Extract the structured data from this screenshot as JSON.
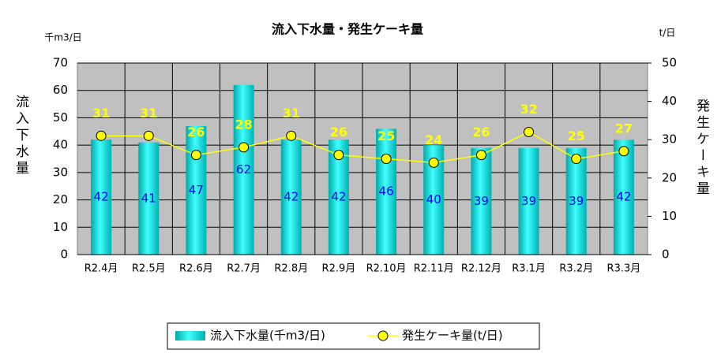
{
  "chart_data": {
    "type": "combo",
    "title": "流入下水量・発生ケーキ量",
    "y_unit": "千m3/日",
    "y2_unit": "t/日",
    "ylabel": "流入下水量",
    "y2label": "発生ケーキ量",
    "categories": [
      "R2.4月",
      "R2.5月",
      "R2.6月",
      "R2.7月",
      "R2.8月",
      "R2.9月",
      "R2.10月",
      "R2.11月",
      "R2.12月",
      "R3.1月",
      "R3.2月",
      "R3.3月"
    ],
    "series": [
      {
        "name": "流入下水量(千m3/日)",
        "type": "bar",
        "color": "#00d0d0",
        "values": [
          42,
          41,
          47,
          62,
          42,
          42,
          46,
          40,
          39,
          39,
          39,
          42
        ]
      },
      {
        "name": "発生ケーキ量(t/日)",
        "type": "line",
        "axis": "y2",
        "color": "#ffff00",
        "values": [
          31,
          31,
          26,
          28,
          31,
          26,
          25,
          24,
          26,
          32,
          25,
          27
        ]
      }
    ],
    "ylim": [
      0,
      70
    ],
    "yticks": [
      0,
      10,
      20,
      30,
      40,
      50,
      60,
      70
    ],
    "y2lim": [
      0,
      50
    ],
    "y2ticks": [
      0,
      10,
      20,
      30,
      40,
      50
    ],
    "grid": true,
    "legend": "bottom"
  }
}
